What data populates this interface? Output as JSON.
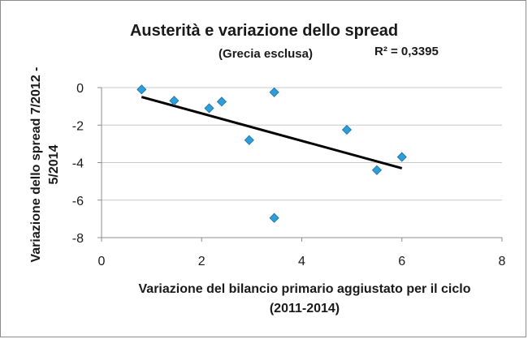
{
  "chart_data": {
    "type": "scatter",
    "title": "Austerità e variazione dello spread",
    "subtitle": "(Grecia esclusa)",
    "r2_label": "R² = 0,3395",
    "xlabel_lines": [
      "Variazione del bilancio primario aggiustato per il ciclo",
      "(2011-2014)"
    ],
    "ylabel_lines": [
      "Variazione dello spread 7/2012 -",
      "5/2014"
    ],
    "xlim": [
      0,
      8
    ],
    "ylim": [
      -8,
      0
    ],
    "xticks": [
      0,
      2,
      4,
      6,
      8
    ],
    "yticks": [
      0,
      -2,
      -4,
      -6,
      -8
    ],
    "grid": "horizontal",
    "marker_color": "#2e9ed8",
    "trendline_color": "#000000",
    "points": [
      {
        "x": 0.8,
        "y": -0.1
      },
      {
        "x": 1.45,
        "y": -0.7
      },
      {
        "x": 2.15,
        "y": -1.1
      },
      {
        "x": 2.4,
        "y": -0.75
      },
      {
        "x": 2.95,
        "y": -2.8
      },
      {
        "x": 3.45,
        "y": -0.25
      },
      {
        "x": 3.45,
        "y": -6.95
      },
      {
        "x": 4.9,
        "y": -2.25
      },
      {
        "x": 5.5,
        "y": -4.4
      },
      {
        "x": 6.0,
        "y": -3.7
      }
    ],
    "trendline": {
      "x": [
        0.8,
        6.0
      ],
      "y": [
        -0.5,
        -4.3
      ]
    }
  }
}
